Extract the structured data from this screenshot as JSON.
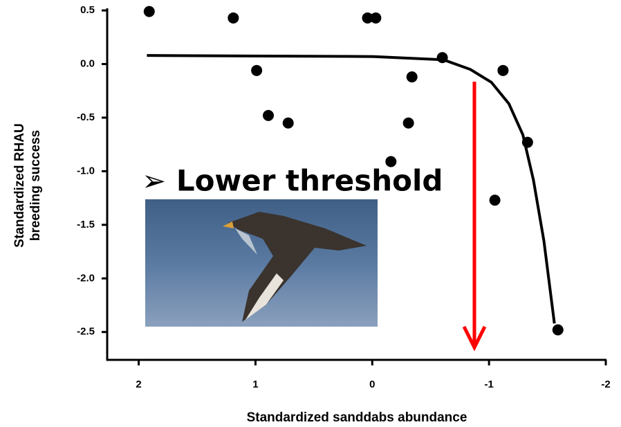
{
  "chart_data": {
    "type": "scatter",
    "x_label": "Standardized sanddabs abundance",
    "y_label": [
      "Standardized RHAU",
      "breeding success"
    ],
    "annotation": "➢ Lower threshold",
    "x": [
      1.91,
      1.19,
      0.99,
      0.89,
      0.72,
      0.04,
      -0.03,
      -0.16,
      -0.31,
      -0.34,
      -0.6,
      -1.05,
      -1.12,
      -1.33,
      -1.59
    ],
    "y": [
      0.49,
      0.43,
      -0.06,
      -0.48,
      -0.55,
      0.43,
      0.43,
      -0.91,
      -0.55,
      -0.12,
      0.06,
      -1.27,
      -0.06,
      -0.73,
      -2.48
    ],
    "color": "#000000",
    "fit": {
      "x": [
        1.93,
        -0.01,
        -0.61,
        -0.84,
        -1.02,
        -1.17,
        -1.29,
        -1.38,
        -1.47,
        -1.56
      ],
      "y": [
        0.08,
        0.07,
        0.04,
        -0.05,
        -0.17,
        -0.37,
        -0.66,
        -1.08,
        -1.65,
        -2.42
      ],
      "color": "#000000"
    },
    "xlim": [
      2.27,
      -2
    ],
    "ylim": [
      -2.76,
      0.52
    ],
    "xticks": [
      2,
      1,
      0,
      -1,
      -2
    ],
    "yticks": [
      0.5,
      {
        "value": 0,
        "label": "0.0"
      },
      -0.5,
      {
        "value": -1,
        "label": "-1.0"
      },
      -1.5,
      {
        "value": -2,
        "label": "-2.0"
      },
      -2.5
    ]
  }
}
